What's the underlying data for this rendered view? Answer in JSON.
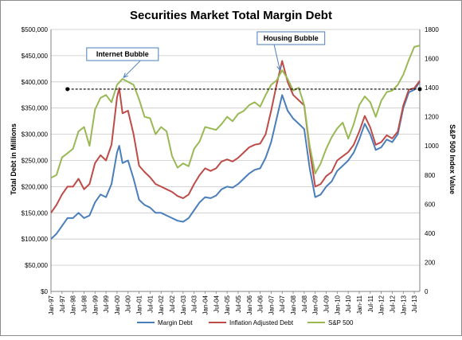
{
  "chart_data": {
    "type": "line",
    "title": "Securities Market Total Margin Debt",
    "ylabel_left": "Total Debt in Millions",
    "ylabel_right": "S&P 500 Index Value",
    "y_left_range": [
      0,
      500000
    ],
    "y_right_range": [
      0,
      1800
    ],
    "y_left_ticks": [
      "$0",
      "$50,000",
      "$100,000",
      "$150,000",
      "$200,000",
      "$250,000",
      "$300,000",
      "$350,000",
      "$400,000",
      "$450,000",
      "$500,000"
    ],
    "y_left_tick_values": [
      0,
      50000,
      100000,
      150000,
      200000,
      250000,
      300000,
      350000,
      400000,
      450000,
      500000
    ],
    "y_right_ticks": [
      "0",
      "200",
      "400",
      "600",
      "800",
      "1000",
      "1200",
      "1400",
      "1600",
      "1800"
    ],
    "y_right_tick_values": [
      0,
      200,
      400,
      600,
      800,
      1000,
      1200,
      1400,
      1600,
      1800
    ],
    "x_ticks": [
      "Jan-97",
      "Jul-97",
      "Jan-98",
      "Jul-98",
      "Jan-99",
      "Jul-99",
      "Jan-00",
      "Jul-00",
      "Jan-01",
      "Jul-01",
      "Jan-02",
      "Jul-02",
      "Jan-03",
      "Jul-03",
      "Jan-04",
      "Jul-04",
      "Jan-05",
      "Jul-05",
      "Jan-06",
      "Jul-06",
      "Jan-07",
      "Jul-07",
      "Jan-08",
      "Jul-08",
      "Jan-09",
      "Jul-09",
      "Jan-10",
      "Jul-10",
      "Jan-11",
      "Jul-11",
      "Jan-12",
      "Jul-12",
      "Jan-13",
      "Jul-13"
    ],
    "x_range": [
      1997.0,
      2013.75
    ],
    "grid": true,
    "legend_position": "bottom",
    "series": [
      {
        "name": "Margin Debt",
        "axis": "left",
        "color": "#4a7ebb",
        "x": [
          1997.0,
          1997.25,
          1997.5,
          1997.75,
          1998.0,
          1998.25,
          1998.5,
          1998.75,
          1999.0,
          1999.25,
          1999.5,
          1999.75,
          2000.0,
          2000.1,
          2000.25,
          2000.5,
          2000.75,
          2001.0,
          2001.25,
          2001.5,
          2001.75,
          2002.0,
          2002.25,
          2002.5,
          2002.75,
          2003.0,
          2003.25,
          2003.5,
          2003.75,
          2004.0,
          2004.25,
          2004.5,
          2004.75,
          2005.0,
          2005.25,
          2005.5,
          2005.75,
          2006.0,
          2006.25,
          2006.5,
          2006.75,
          2007.0,
          2007.25,
          2007.5,
          2007.75,
          2008.0,
          2008.25,
          2008.5,
          2008.75,
          2009.0,
          2009.25,
          2009.5,
          2009.75,
          2010.0,
          2010.25,
          2010.5,
          2010.75,
          2011.0,
          2011.25,
          2011.5,
          2011.75,
          2012.0,
          2012.25,
          2012.5,
          2012.75,
          2013.0,
          2013.25,
          2013.5,
          2013.75
        ],
        "values": [
          100000,
          110000,
          125000,
          140000,
          140000,
          150000,
          140000,
          145000,
          170000,
          185000,
          180000,
          205000,
          265000,
          278000,
          245000,
          250000,
          215000,
          175000,
          165000,
          160000,
          150000,
          150000,
          145000,
          140000,
          135000,
          133000,
          140000,
          155000,
          170000,
          180000,
          178000,
          183000,
          195000,
          200000,
          198000,
          205000,
          215000,
          225000,
          232000,
          235000,
          255000,
          285000,
          330000,
          375000,
          345000,
          330000,
          320000,
          310000,
          235000,
          180000,
          185000,
          200000,
          210000,
          230000,
          240000,
          250000,
          265000,
          290000,
          320000,
          300000,
          270000,
          275000,
          290000,
          285000,
          300000,
          350000,
          380000,
          385000,
          400000
        ]
      },
      {
        "name": "Inflation Adjusted Debt",
        "axis": "left",
        "color": "#be4b48",
        "x": [
          1997.0,
          1997.25,
          1997.5,
          1997.75,
          1998.0,
          1998.25,
          1998.5,
          1998.75,
          1999.0,
          1999.25,
          1999.5,
          1999.75,
          2000.0,
          2000.1,
          2000.25,
          2000.5,
          2000.75,
          2001.0,
          2001.25,
          2001.5,
          2001.75,
          2002.0,
          2002.25,
          2002.5,
          2002.75,
          2003.0,
          2003.25,
          2003.5,
          2003.75,
          2004.0,
          2004.25,
          2004.5,
          2004.75,
          2005.0,
          2005.25,
          2005.5,
          2005.75,
          2006.0,
          2006.25,
          2006.5,
          2006.75,
          2007.0,
          2007.25,
          2007.5,
          2007.75,
          2008.0,
          2008.25,
          2008.5,
          2008.75,
          2009.0,
          2009.25,
          2009.5,
          2009.75,
          2010.0,
          2010.25,
          2010.5,
          2010.75,
          2011.0,
          2011.25,
          2011.5,
          2011.75,
          2012.0,
          2012.25,
          2012.5,
          2012.75,
          2013.0,
          2013.25,
          2013.5,
          2013.75
        ],
        "values": [
          150000,
          165000,
          185000,
          200000,
          200000,
          215000,
          195000,
          205000,
          245000,
          260000,
          250000,
          280000,
          370000,
          388000,
          340000,
          345000,
          300000,
          240000,
          228000,
          218000,
          205000,
          200000,
          195000,
          190000,
          182000,
          178000,
          185000,
          205000,
          222000,
          235000,
          230000,
          235000,
          248000,
          252000,
          248000,
          255000,
          265000,
          275000,
          280000,
          282000,
          300000,
          345000,
          395000,
          440000,
          400000,
          375000,
          365000,
          355000,
          270000,
          200000,
          205000,
          220000,
          228000,
          250000,
          258000,
          266000,
          280000,
          305000,
          335000,
          313000,
          280000,
          285000,
          298000,
          292000,
          305000,
          355000,
          385000,
          388000,
          402000
        ]
      },
      {
        "name": "S&P 500",
        "axis": "right",
        "color": "#98b954",
        "x": [
          1997.0,
          1997.25,
          1997.5,
          1997.75,
          1998.0,
          1998.25,
          1998.5,
          1998.75,
          1999.0,
          1999.25,
          1999.5,
          1999.75,
          2000.0,
          2000.25,
          2000.5,
          2000.75,
          2001.0,
          2001.25,
          2001.5,
          2001.75,
          2002.0,
          2002.25,
          2002.5,
          2002.75,
          2003.0,
          2003.25,
          2003.5,
          2003.75,
          2004.0,
          2004.25,
          2004.5,
          2004.75,
          2005.0,
          2005.25,
          2005.5,
          2005.75,
          2006.0,
          2006.25,
          2006.5,
          2006.75,
          2007.0,
          2007.25,
          2007.5,
          2007.75,
          2008.0,
          2008.25,
          2008.5,
          2008.75,
          2009.0,
          2009.25,
          2009.5,
          2009.75,
          2010.0,
          2010.25,
          2010.5,
          2010.75,
          2011.0,
          2011.25,
          2011.5,
          2011.75,
          2012.0,
          2012.25,
          2012.5,
          2012.75,
          2013.0,
          2013.25,
          2013.5,
          2013.75
        ],
        "values": [
          780,
          800,
          920,
          950,
          980,
          1100,
          1130,
          1000,
          1250,
          1330,
          1350,
          1300,
          1420,
          1460,
          1440,
          1420,
          1320,
          1200,
          1190,
          1080,
          1130,
          1100,
          930,
          850,
          880,
          860,
          980,
          1030,
          1130,
          1120,
          1110,
          1150,
          1200,
          1170,
          1220,
          1240,
          1280,
          1300,
          1270,
          1350,
          1420,
          1450,
          1520,
          1460,
          1380,
          1400,
          1280,
          1000,
          810,
          880,
          980,
          1060,
          1120,
          1160,
          1050,
          1150,
          1280,
          1340,
          1300,
          1200,
          1310,
          1370,
          1380,
          1420,
          1490,
          1590,
          1680,
          1690
        ]
      }
    ],
    "reference_line": {
      "value_right": 1390,
      "x_start": 1997.75,
      "x_end": 2013.75,
      "style": "dashed",
      "color": "#000000"
    },
    "annotations": [
      {
        "text": "Internet Bubble",
        "x": 2000.25,
        "y_right": 1630,
        "arrow_x": 2000.3,
        "arrow_y_right": 1470
      },
      {
        "text": "Housing Bubble",
        "x": 2007.9,
        "y_right": 1740,
        "arrow_x": 2007.4,
        "arrow_y_right": 1520
      }
    ]
  }
}
